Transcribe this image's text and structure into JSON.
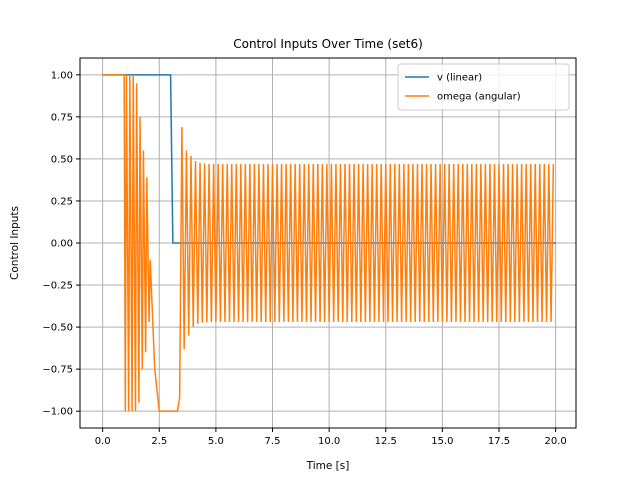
{
  "chart_data": {
    "type": "line",
    "title": "Control Inputs Over Time (set6)",
    "xlabel": "Time [s]",
    "ylabel": "Control Inputs",
    "xlim": [
      -1.0,
      20.9
    ],
    "ylim": [
      -1.1,
      1.1
    ],
    "xticks": [
      0.0,
      2.5,
      5.0,
      7.5,
      10.0,
      12.5,
      15.0,
      17.5,
      20.0
    ],
    "xtick_labels": [
      "0.0",
      "2.5",
      "5.0",
      "7.5",
      "10.0",
      "12.5",
      "15.0",
      "17.5",
      "20.0"
    ],
    "yticks": [
      -1.0,
      -0.75,
      -0.5,
      -0.25,
      0.0,
      0.25,
      0.5,
      0.75,
      1.0
    ],
    "ytick_labels": [
      "−1.00",
      "−0.75",
      "−0.50",
      "−0.25",
      "0.00",
      "0.25",
      "0.50",
      "0.75",
      "1.00"
    ],
    "grid": true,
    "legend_position": "upper right",
    "series": [
      {
        "name": "v (linear)",
        "color": "#1f77b4",
        "x": [
          0.0,
          3.0,
          3.1,
          20.0
        ],
        "y": [
          1.0,
          1.0,
          0.0,
          0.0
        ]
      },
      {
        "name": "omega (angular)",
        "color": "#ff7f0e",
        "x": [
          0.0,
          0.9,
          0.95,
          1.0,
          1.05,
          1.15,
          1.2,
          1.3,
          1.35,
          1.45,
          1.5,
          1.6,
          1.65,
          1.75,
          1.8,
          1.9,
          1.95,
          2.05,
          2.1,
          2.3,
          2.5,
          2.6,
          2.7,
          3.3,
          3.4,
          3.5,
          3.6,
          3.7
        ],
        "y": [
          1.0,
          1.0,
          1.0,
          -1.0,
          1.0,
          -1.0,
          1.0,
          -1.0,
          1.0,
          -1.0,
          0.95,
          -0.95,
          0.75,
          -0.75,
          0.55,
          -0.65,
          0.39,
          -0.47,
          -0.1,
          -0.75,
          -1.0,
          -1.0,
          -1.0,
          -1.0,
          -0.92,
          0.69,
          -0.63,
          0.55
        ],
        "steady_oscillation": {
          "t_start": 3.7,
          "t_end": 19.9,
          "amplitude_start": 0.55,
          "amplitude_steady": 0.47,
          "period": 0.2
        }
      }
    ]
  }
}
